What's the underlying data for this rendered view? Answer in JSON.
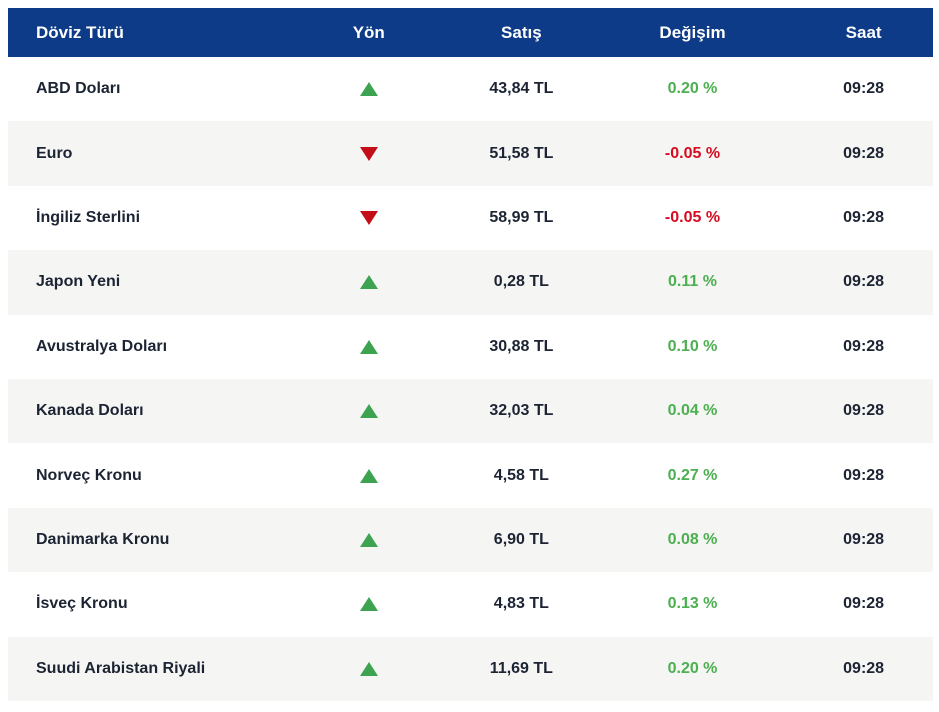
{
  "table": {
    "columns": [
      {
        "key": "currency",
        "label": "Döviz Türü"
      },
      {
        "key": "direction",
        "label": "Yön"
      },
      {
        "key": "price",
        "label": "Satış"
      },
      {
        "key": "change",
        "label": "Değişim"
      },
      {
        "key": "time",
        "label": "Saat"
      }
    ],
    "rows": [
      {
        "currency": "ABD Doları",
        "direction": "up",
        "price": "43,84 TL",
        "change": "0.20 %",
        "time": "09:28"
      },
      {
        "currency": "Euro",
        "direction": "down",
        "price": "51,58 TL",
        "change": "-0.05 %",
        "time": "09:28"
      },
      {
        "currency": "İngiliz Sterlini",
        "direction": "down",
        "price": "58,99 TL",
        "change": "-0.05 %",
        "time": "09:28"
      },
      {
        "currency": "Japon Yeni",
        "direction": "up",
        "price": "0,28 TL",
        "change": "0.11 %",
        "time": "09:28"
      },
      {
        "currency": "Avustralya Doları",
        "direction": "up",
        "price": "30,88 TL",
        "change": "0.10 %",
        "time": "09:28"
      },
      {
        "currency": "Kanada Doları",
        "direction": "up",
        "price": "32,03 TL",
        "change": "0.04 %",
        "time": "09:28"
      },
      {
        "currency": "Norveç Kronu",
        "direction": "up",
        "price": "4,58 TL",
        "change": "0.27 %",
        "time": "09:28"
      },
      {
        "currency": "Danimarka Kronu",
        "direction": "up",
        "price": "6,90 TL",
        "change": "0.08 %",
        "time": "09:28"
      },
      {
        "currency": "İsveç Kronu",
        "direction": "up",
        "price": "4,83 TL",
        "change": "0.13 %",
        "time": "09:28"
      },
      {
        "currency": "Suudi Arabistan Riyali",
        "direction": "up",
        "price": "11,69 TL",
        "change": "0.20 %",
        "time": "09:28"
      }
    ]
  },
  "colors": {
    "header_bg": "#0d3b87",
    "header_text": "#ffffff",
    "row_alt_bg": "#f5f5f4",
    "text_dark": "#1c2433",
    "up_green": "#3da351",
    "up_text": "#4caf50",
    "down_red": "#c30d17",
    "down_text": "#d60b21"
  }
}
